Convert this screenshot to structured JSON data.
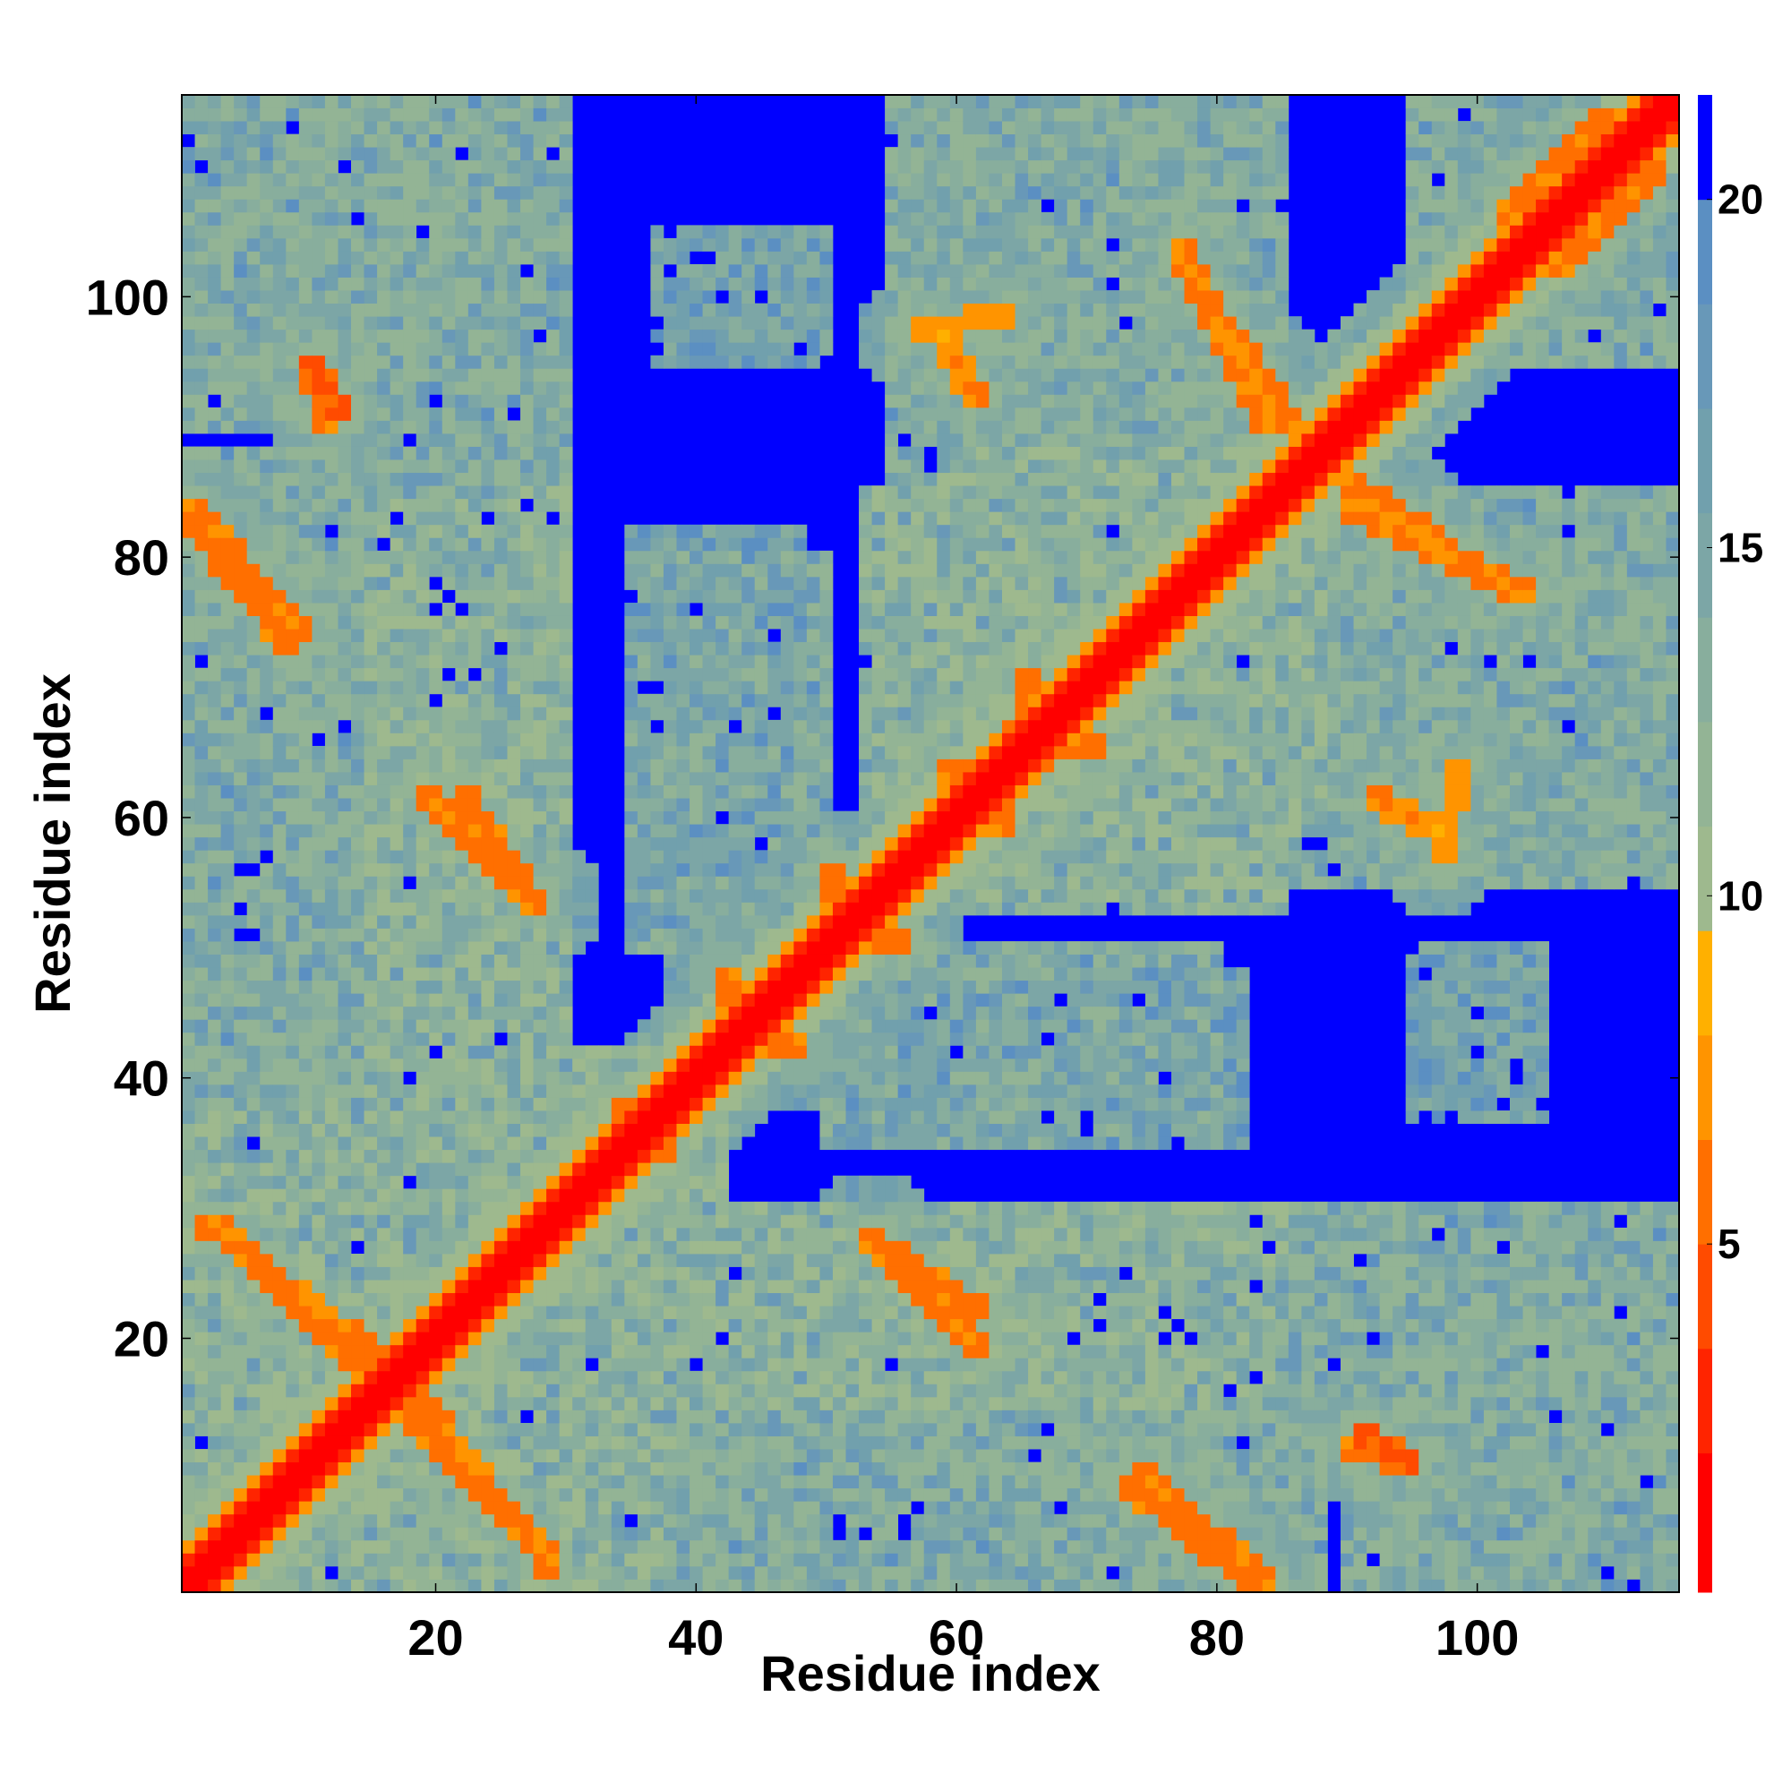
{
  "chart_data": {
    "type": "heatmap",
    "title": "",
    "xlabel": "Residue index",
    "ylabel": "Residue index",
    "n_residues": 115,
    "xlim": [
      0.5,
      115.5
    ],
    "ylim": [
      0.5,
      115.5
    ],
    "x_ticks": [
      20,
      40,
      60,
      80,
      100
    ],
    "y_ticks": [
      20,
      40,
      60,
      80,
      100
    ],
    "x_tick_labels": [
      "20",
      "40",
      "60",
      "80",
      "100"
    ],
    "y_tick_labels": [
      "20",
      "40",
      "60",
      "80",
      "100"
    ],
    "colorbar": {
      "range": [
        0,
        21.5
      ],
      "ticks": [
        5,
        10,
        15,
        20
      ],
      "tick_labels": [
        "5",
        "10",
        "15",
        "20"
      ],
      "colors": [
        {
          "from": 0.0,
          "to": 2.0,
          "color": "#ff0000"
        },
        {
          "from": 2.0,
          "to": 3.5,
          "color": "#ff2400"
        },
        {
          "from": 3.5,
          "to": 5.0,
          "color": "#ff4b00"
        },
        {
          "from": 5.0,
          "to": 6.5,
          "color": "#ff6f00"
        },
        {
          "from": 6.5,
          "to": 8.0,
          "color": "#ff9400"
        },
        {
          "from": 8.0,
          "to": 9.5,
          "color": "#ffb000"
        },
        {
          "from": 9.5,
          "to": 11.0,
          "color": "#9eb98e"
        },
        {
          "from": 11.0,
          "to": 12.5,
          "color": "#93b495"
        },
        {
          "from": 12.5,
          "to": 14.0,
          "color": "#88ae9d"
        },
        {
          "from": 14.0,
          "to": 15.5,
          "color": "#7ca6a6"
        },
        {
          "from": 15.5,
          "to": 17.0,
          "color": "#71a0ad"
        },
        {
          "from": 17.0,
          "to": 18.5,
          "color": "#6898b8"
        },
        {
          "from": 18.5,
          "to": 20.0,
          "color": "#5b8fc2"
        },
        {
          "from": 20.0,
          "to": 21.5,
          "color": "#0000ff"
        }
      ]
    },
    "description_of_values": "Symmetric residue-residue distance matrix; diagonal band values 0-3; background (far pairs) above 20 shown in blue.",
    "contact_segments": [
      {
        "from": [
          2,
          29
        ],
        "to": [
          18,
          17
        ],
        "value": 6.5
      },
      {
        "from": [
          16,
          16
        ],
        "to": [
          29,
          3
        ],
        "value": 6.5
      },
      {
        "from": [
          22,
          62
        ],
        "to": [
          28,
          53
        ],
        "value": 6.5
      },
      {
        "from": [
          1,
          83
        ],
        "to": [
          9,
          73
        ],
        "value": 6.5
      },
      {
        "from": [
          10,
          95
        ],
        "to": [
          13,
          91
        ],
        "value": 5.5
      },
      {
        "from": [
          53,
          28
        ],
        "to": [
          62,
          19
        ],
        "value": 6.5
      },
      {
        "from": [
          74,
          10
        ],
        "to": [
          84,
          1
        ],
        "value": 6.5
      },
      {
        "from": [
          77,
          103
        ],
        "to": [
          86,
          90
        ],
        "value": 6.5
      },
      {
        "from": [
          90,
          84
        ],
        "to": [
          104,
          77
        ],
        "value": 6.5
      },
      {
        "from": [
          57,
          97
        ],
        "to": [
          64,
          99
        ],
        "value": 7.5
      },
      {
        "from": [
          92,
          62
        ],
        "to": [
          96,
          59
        ],
        "value": 7.0
      },
      {
        "from": [
          90,
          12
        ],
        "to": [
          95,
          10
        ],
        "value": 6.0
      },
      {
        "from": [
          59,
          63
        ],
        "to": [
          71,
          66
        ],
        "value": 6.0
      },
      {
        "from": [
          34,
          38
        ],
        "to": [
          38,
          36
        ],
        "value": 7.0
      },
      {
        "from": [
          43,
          43
        ],
        "to": [
          48,
          42
        ],
        "value": 6.5
      },
      {
        "from": [
          52,
          52
        ],
        "to": [
          56,
          50
        ],
        "value": 6.5
      },
      {
        "from": [
          102,
          106
        ],
        "to": [
          110,
          114
        ],
        "value": 6.5
      }
    ],
    "domain_patches": [
      {
        "x": [
          1,
          14
        ],
        "y": [
          90,
          115
        ],
        "value": 16
      },
      {
        "x": [
          20,
          28
        ],
        "y": [
          88,
          115
        ],
        "value": 16
      },
      {
        "x": [
          38,
          50
        ],
        "y": [
          97,
          105
        ],
        "value": 17
      },
      {
        "x": [
          55,
          85
        ],
        "y": [
          90,
          115
        ],
        "value": 15
      },
      {
        "x": [
          97,
          115
        ],
        "y": [
          95,
          115
        ],
        "value": 15
      },
      {
        "x": [
          1,
          30
        ],
        "y": [
          70,
          88
        ],
        "value": 15
      },
      {
        "x": [
          1,
          30
        ],
        "y": [
          38,
          65
        ],
        "value": 15
      },
      {
        "x": [
          35,
          50
        ],
        "y": [
          50,
          80
        ],
        "value": 16
      },
      {
        "x": [
          53,
          88
        ],
        "y": [
          55,
          85
        ],
        "value": 14
      },
      {
        "x": [
          88,
          115
        ],
        "y": [
          55,
          82
        ],
        "value": 15
      },
      {
        "x": [
          95,
          105
        ],
        "y": [
          37,
          50
        ],
        "value": 17
      },
      {
        "x": [
          60,
          82
        ],
        "y": [
          35,
          48
        ],
        "value": 17
      },
      {
        "x": [
          38,
          85
        ],
        "y": [
          15,
          30
        ],
        "value": 14
      },
      {
        "x": [
          87,
          115
        ],
        "y": [
          15,
          30
        ],
        "value": 15
      },
      {
        "x": [
          38,
          85
        ],
        "y": [
          1,
          14
        ],
        "value": 15
      },
      {
        "x": [
          90,
          115
        ],
        "y": [
          1,
          14
        ],
        "value": 15
      },
      {
        "x": [
          1,
          38
        ],
        "y": [
          1,
          35
        ],
        "value": 14
      },
      {
        "x": [
          28,
          40
        ],
        "y": [
          28,
          42
        ],
        "value": 14
      }
    ]
  }
}
